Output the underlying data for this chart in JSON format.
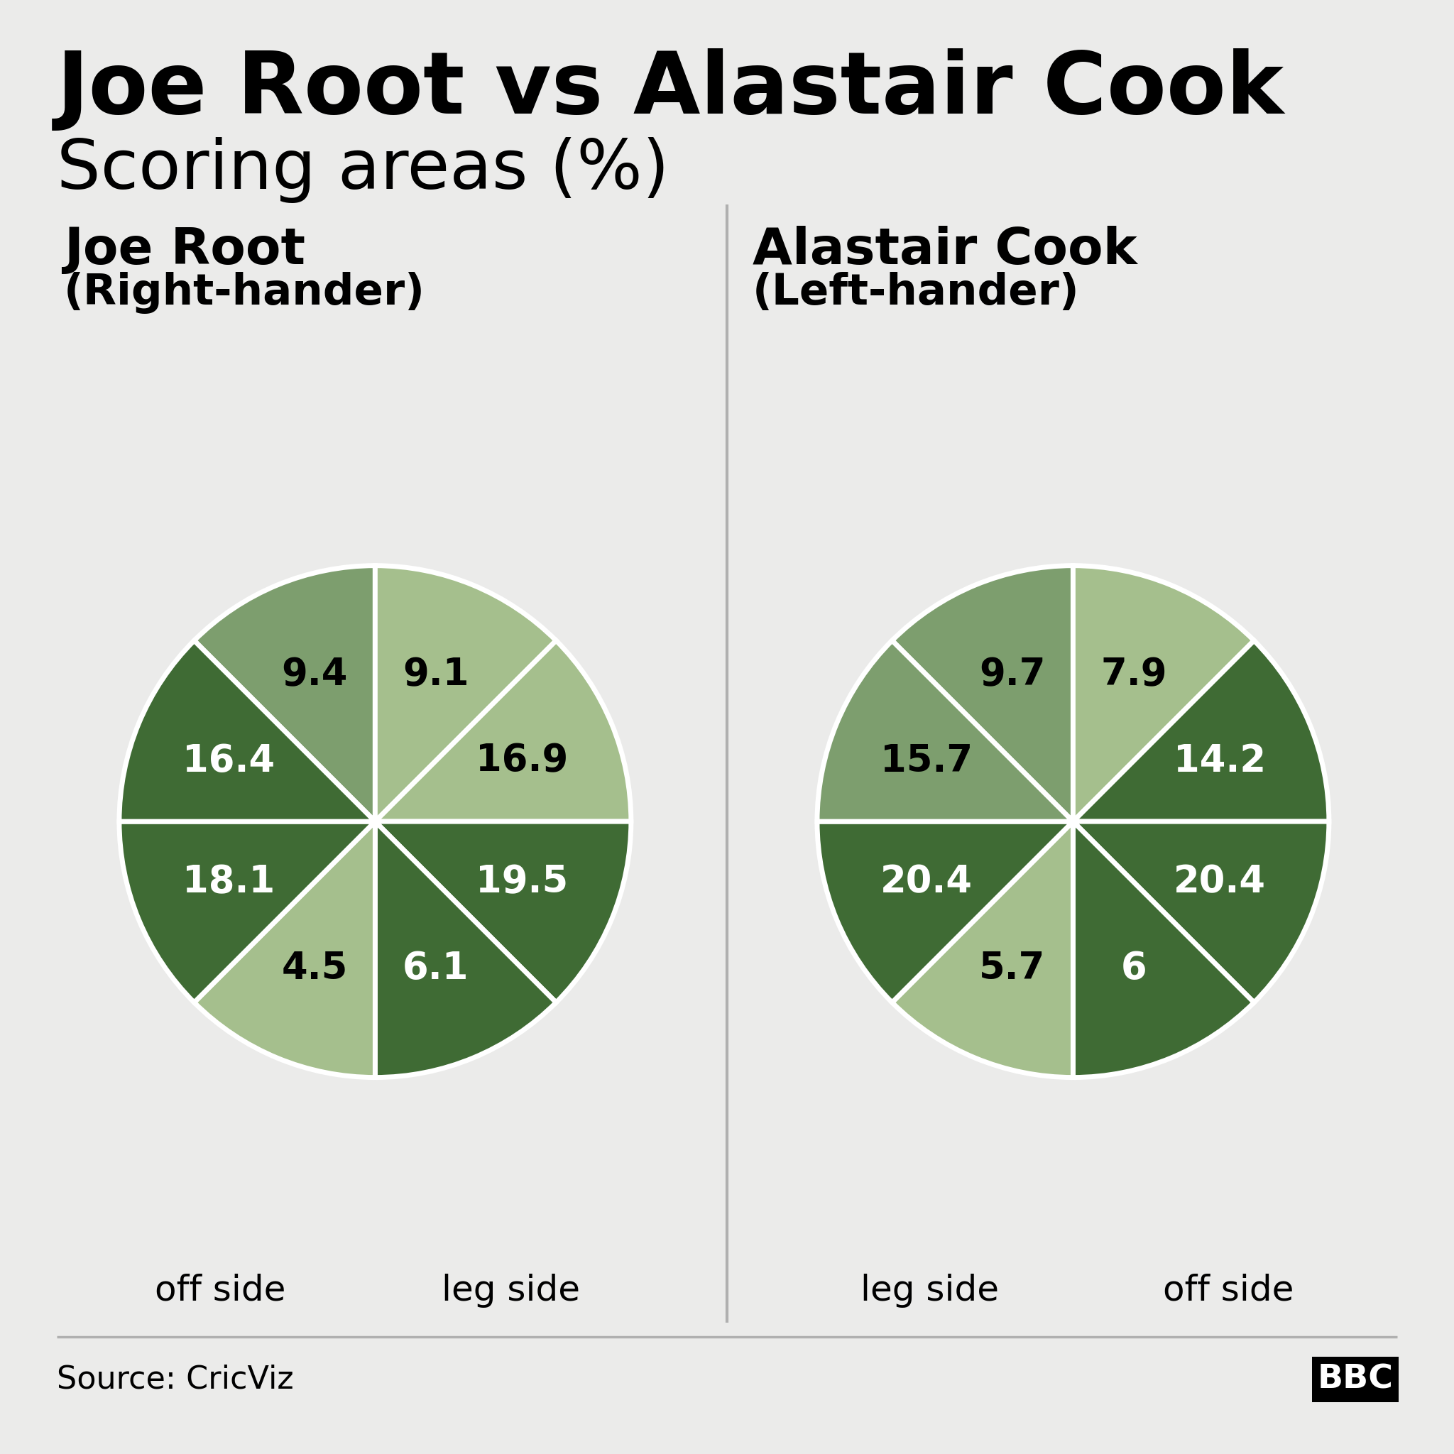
{
  "title_line1": "Joe Root vs Alastair Cook",
  "title_line2": "Scoring areas (%)",
  "background_color": "#ebebea",
  "root_name": "Joe Root",
  "root_hand": "(Right-hander)",
  "cook_name": "Alastair Cook",
  "cook_hand": "(Left-hander)",
  "root_side_left": "off side",
  "root_side_right": "leg side",
  "cook_side_left": "leg side",
  "cook_side_right": "off side",
  "source_text": "Source: CricViz",
  "root_labels": [
    "9.4",
    "9.1",
    "16.9",
    "19.5",
    "6.1",
    "4.5",
    "18.1",
    "16.4"
  ],
  "cook_labels": [
    "9.7",
    "7.9",
    "14.2",
    "20.4",
    "6",
    "5.7",
    "20.4",
    "15.7"
  ],
  "light_green": "#a5bf8d",
  "medium_green": "#7d9e6e",
  "dark_green": "#3f6b34",
  "root_colors": [
    "#7d9e6e",
    "#a5bf8d",
    "#a5bf8d",
    "#3f6b34",
    "#3f6b34",
    "#a5bf8d",
    "#3f6b34",
    "#3f6b34"
  ],
  "cook_colors": [
    "#7d9e6e",
    "#a5bf8d",
    "#3f6b34",
    "#3f6b34",
    "#3f6b34",
    "#a5bf8d",
    "#3f6b34",
    "#7d9e6e"
  ]
}
